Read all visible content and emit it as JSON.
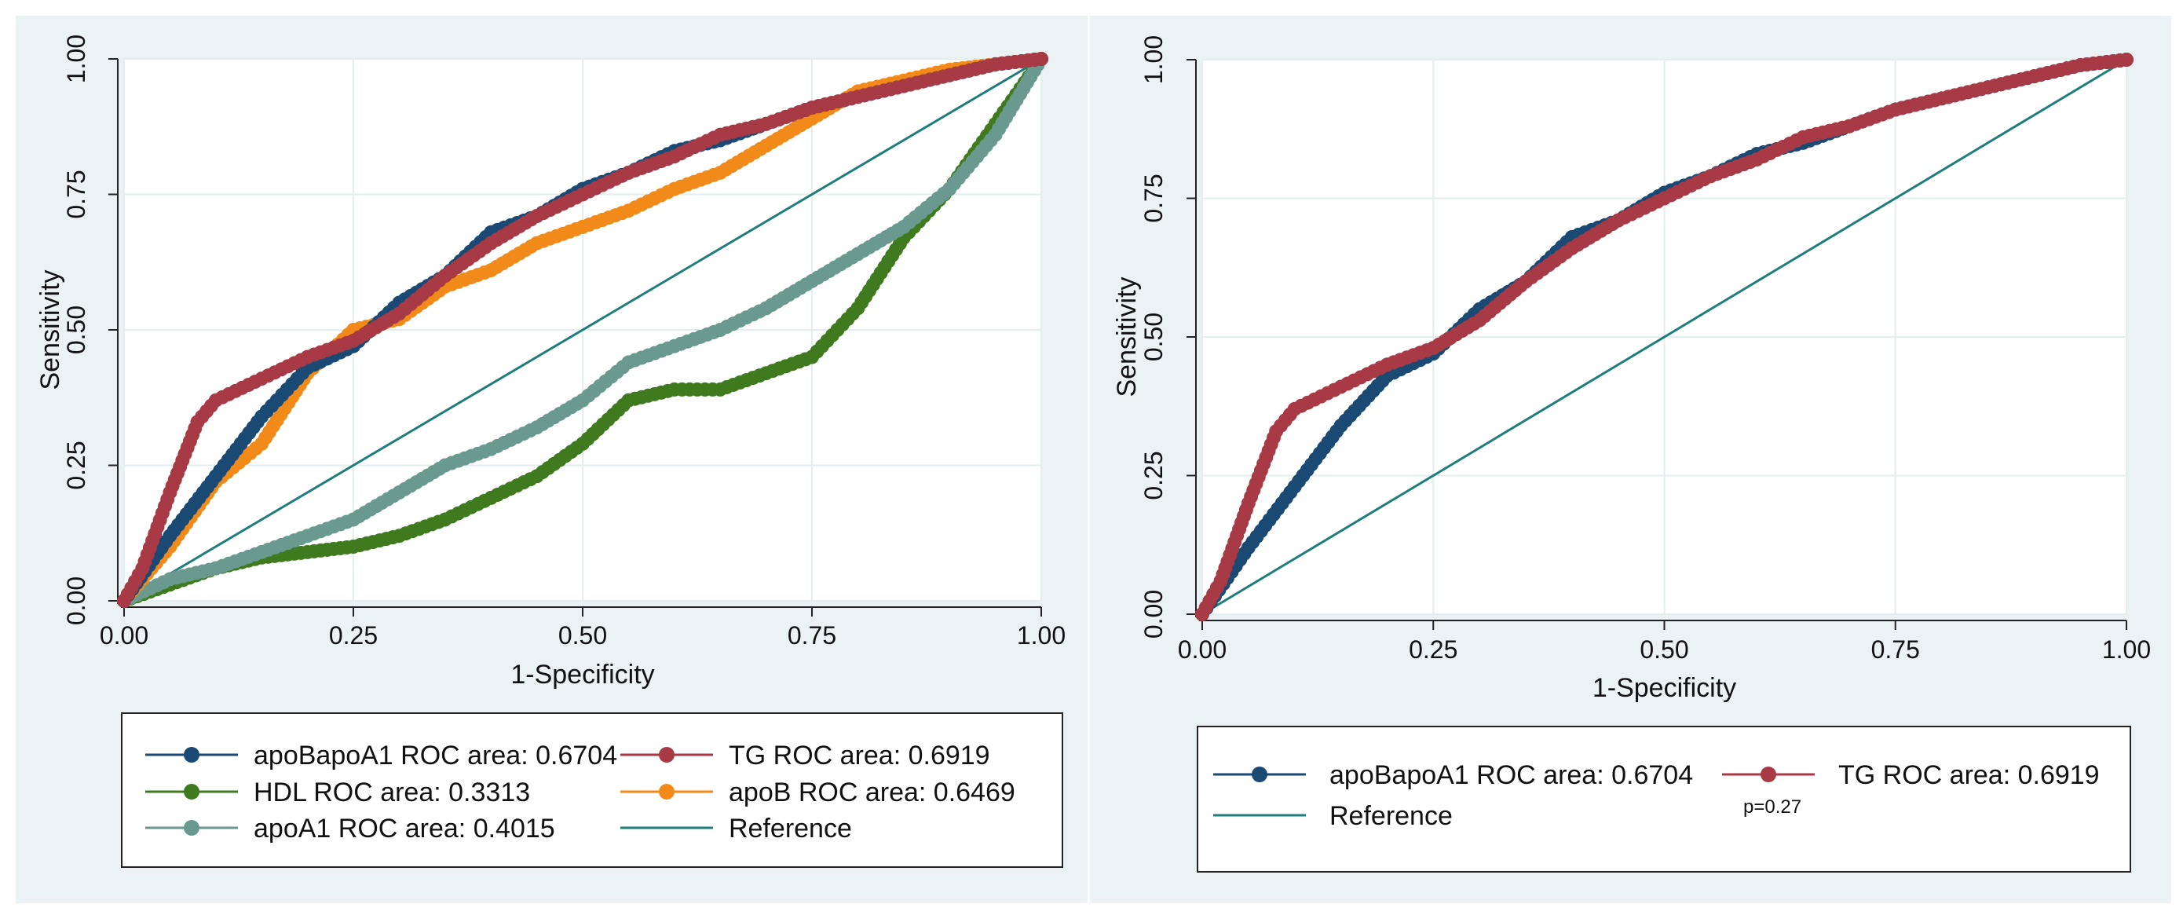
{
  "colors": {
    "apoBapoA1": "#1a4a74",
    "TG": "#a83a46",
    "HDL": "#3f7a1f",
    "apoB": "#f28a1a",
    "apoA1": "#6a9a8f",
    "reference": "#1f7e7a"
  },
  "chart_data": [
    {
      "type": "line",
      "title": "",
      "xlabel": "1-Specificity",
      "ylabel": "Sensitivity",
      "xlim": [
        0,
        1
      ],
      "ylim": [
        0,
        1
      ],
      "xticks": [
        "0.00",
        "0.25",
        "0.50",
        "0.75",
        "1.00"
      ],
      "yticks": [
        "0.00",
        "0.25",
        "0.50",
        "0.75",
        "1.00"
      ],
      "grid": true,
      "legend": [
        {
          "key": "apoBapoA1",
          "label": "apoBapoA1 ROC area: 0.6704",
          "marker": true
        },
        {
          "key": "TG",
          "label": "TG ROC area: 0.6919",
          "marker": true
        },
        {
          "key": "HDL",
          "label": "HDL ROC area: 0.3313",
          "marker": true
        },
        {
          "key": "apoB",
          "label": "apoB ROC area: 0.6469",
          "marker": true
        },
        {
          "key": "apoA1",
          "label": "apoA1 ROC area: 0.4015",
          "marker": true
        },
        {
          "key": "reference",
          "label": "Reference",
          "marker": false
        }
      ],
      "series": [
        {
          "key": "reference",
          "name": "Reference",
          "markers": false,
          "x": [
            0,
            1
          ],
          "y": [
            0,
            1
          ]
        },
        {
          "key": "HDL",
          "name": "HDL",
          "markers": true,
          "x": [
            0,
            0.05,
            0.1,
            0.15,
            0.2,
            0.25,
            0.3,
            0.35,
            0.4,
            0.45,
            0.5,
            0.55,
            0.6,
            0.65,
            0.7,
            0.75,
            0.8,
            0.85,
            0.9,
            0.95,
            1
          ],
          "y": [
            0,
            0.03,
            0.06,
            0.08,
            0.09,
            0.1,
            0.12,
            0.15,
            0.19,
            0.23,
            0.29,
            0.37,
            0.39,
            0.39,
            0.42,
            0.45,
            0.54,
            0.67,
            0.76,
            0.88,
            1
          ]
        },
        {
          "key": "apoA1",
          "name": "apoA1",
          "markers": true,
          "x": [
            0,
            0.05,
            0.1,
            0.15,
            0.2,
            0.25,
            0.3,
            0.35,
            0.4,
            0.45,
            0.5,
            0.55,
            0.6,
            0.65,
            0.7,
            0.75,
            0.8,
            0.85,
            0.9,
            0.95,
            1
          ],
          "y": [
            0,
            0.04,
            0.06,
            0.09,
            0.12,
            0.15,
            0.2,
            0.25,
            0.28,
            0.32,
            0.37,
            0.44,
            0.47,
            0.5,
            0.54,
            0.59,
            0.64,
            0.69,
            0.76,
            0.86,
            1
          ]
        },
        {
          "key": "apoB",
          "name": "apoB",
          "markers": true,
          "x": [
            0,
            0.05,
            0.1,
            0.15,
            0.2,
            0.25,
            0.3,
            0.35,
            0.4,
            0.45,
            0.5,
            0.55,
            0.6,
            0.65,
            0.7,
            0.75,
            0.8,
            0.85,
            0.9,
            0.95,
            1
          ],
          "y": [
            0,
            0.1,
            0.22,
            0.29,
            0.42,
            0.5,
            0.52,
            0.58,
            0.61,
            0.66,
            0.69,
            0.72,
            0.76,
            0.79,
            0.84,
            0.89,
            0.94,
            0.96,
            0.98,
            0.99,
            1
          ]
        },
        {
          "key": "apoBapoA1",
          "name": "apoBapoA1",
          "markers": true,
          "x": [
            0,
            0.05,
            0.1,
            0.15,
            0.2,
            0.25,
            0.3,
            0.35,
            0.4,
            0.45,
            0.5,
            0.55,
            0.6,
            0.65,
            0.7,
            0.75,
            0.8,
            0.85,
            0.9,
            0.95,
            1
          ],
          "y": [
            0,
            0.12,
            0.23,
            0.34,
            0.43,
            0.47,
            0.55,
            0.6,
            0.68,
            0.71,
            0.76,
            0.79,
            0.83,
            0.85,
            0.88,
            0.91,
            0.93,
            0.95,
            0.97,
            0.99,
            1
          ]
        },
        {
          "key": "TG",
          "name": "TG",
          "markers": true,
          "x": [
            0,
            0.02,
            0.05,
            0.08,
            0.1,
            0.15,
            0.2,
            0.25,
            0.3,
            0.35,
            0.4,
            0.45,
            0.5,
            0.55,
            0.6,
            0.65,
            0.7,
            0.75,
            0.8,
            0.85,
            0.9,
            0.95,
            1
          ],
          "y": [
            0,
            0.06,
            0.2,
            0.33,
            0.37,
            0.41,
            0.45,
            0.48,
            0.53,
            0.6,
            0.66,
            0.71,
            0.75,
            0.79,
            0.82,
            0.86,
            0.88,
            0.91,
            0.93,
            0.95,
            0.97,
            0.99,
            1
          ]
        }
      ]
    },
    {
      "type": "line",
      "title": "",
      "xlabel": "1-Specificity",
      "ylabel": "Sensitivity",
      "xlim": [
        0,
        1
      ],
      "ylim": [
        0,
        1
      ],
      "xticks": [
        "0.00",
        "0.25",
        "0.50",
        "0.75",
        "1.00"
      ],
      "yticks": [
        "0.00",
        "0.25",
        "0.50",
        "0.75",
        "1.00"
      ],
      "grid": true,
      "legend": [
        {
          "key": "apoBapoA1",
          "label": "apoBapoA1 ROC area: 0.6704",
          "marker": true
        },
        {
          "key": "TG",
          "label": "TG ROC area: 0.6919",
          "marker": true
        },
        {
          "key": "reference",
          "label": "Reference",
          "marker": false
        }
      ],
      "annotation": "p=0.27",
      "series": [
        {
          "key": "reference",
          "name": "Reference",
          "markers": false,
          "x": [
            0,
            1
          ],
          "y": [
            0,
            1
          ]
        },
        {
          "key": "apoBapoA1",
          "name": "apoBapoA1",
          "markers": true,
          "x": [
            0,
            0.05,
            0.1,
            0.15,
            0.2,
            0.25,
            0.3,
            0.35,
            0.4,
            0.45,
            0.5,
            0.55,
            0.6,
            0.65,
            0.7,
            0.75,
            0.8,
            0.85,
            0.9,
            0.95,
            1
          ],
          "y": [
            0,
            0.12,
            0.23,
            0.34,
            0.43,
            0.47,
            0.55,
            0.6,
            0.68,
            0.71,
            0.76,
            0.79,
            0.83,
            0.85,
            0.88,
            0.91,
            0.93,
            0.95,
            0.97,
            0.99,
            1
          ]
        },
        {
          "key": "TG",
          "name": "TG",
          "markers": true,
          "x": [
            0,
            0.02,
            0.05,
            0.08,
            0.1,
            0.15,
            0.2,
            0.25,
            0.3,
            0.35,
            0.4,
            0.45,
            0.5,
            0.55,
            0.6,
            0.65,
            0.7,
            0.75,
            0.8,
            0.85,
            0.9,
            0.95,
            1
          ],
          "y": [
            0,
            0.06,
            0.2,
            0.33,
            0.37,
            0.41,
            0.45,
            0.48,
            0.53,
            0.6,
            0.66,
            0.71,
            0.75,
            0.79,
            0.82,
            0.86,
            0.88,
            0.91,
            0.93,
            0.95,
            0.97,
            0.99,
            1
          ]
        }
      ]
    }
  ]
}
